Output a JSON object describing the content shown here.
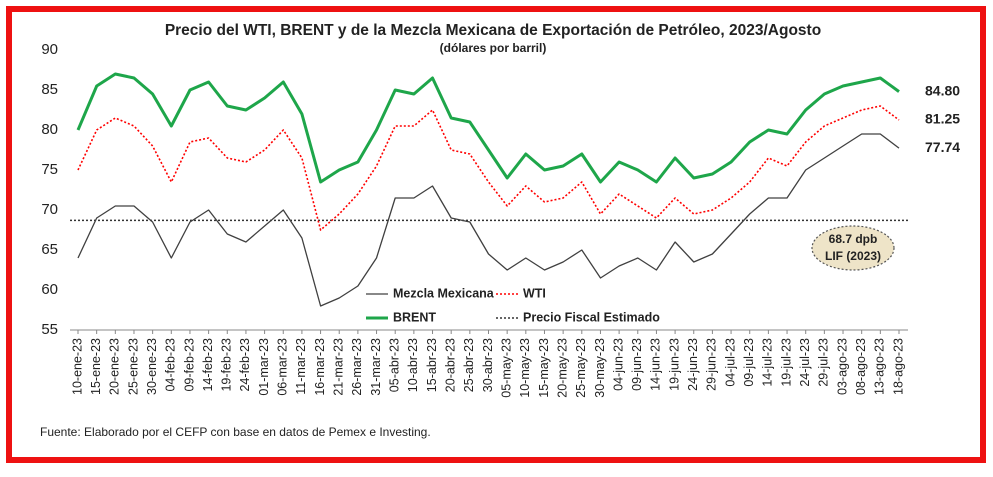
{
  "chart_data": {
    "type": "line",
    "title": "Precio del WTI, BRENT y de la Mezcla Mexicana de Exportación de Petróleo, 2023/Agosto",
    "subtitle": "(dólares por barril)",
    "categories": [
      "10-ene-23",
      "15-ene-23",
      "20-ene-23",
      "25-ene-23",
      "30-ene-23",
      "04-feb-23",
      "09-feb-23",
      "14-feb-23",
      "19-feb-23",
      "24-feb-23",
      "01-mar-23",
      "06-mar-23",
      "11-mar-23",
      "16-mar-23",
      "21-mar-23",
      "26-mar-23",
      "31-mar-23",
      "05-abr-23",
      "10-abr-23",
      "15-abr-23",
      "20-abr-23",
      "25-abr-23",
      "30-abr-23",
      "05-may-23",
      "10-may-23",
      "15-may-23",
      "20-may-23",
      "25-may-23",
      "30-may-23",
      "04-jun-23",
      "09-jun-23",
      "14-jun-23",
      "19-jun-23",
      "24-jun-23",
      "29-jun-23",
      "04-jul-23",
      "09-jul-23",
      "14-jul-23",
      "19-jul-23",
      "24-jul-23",
      "29-jul-23",
      "03-ago-23",
      "08-ago-23",
      "13-ago-23",
      "18-ago-23"
    ],
    "series": [
      {
        "name": "Mezcla Mexicana",
        "color": "#404040",
        "dash": false,
        "width": 1.3,
        "values": [
          64,
          69,
          70.5,
          70.5,
          68.5,
          64,
          68.5,
          70,
          67,
          66,
          68,
          70,
          66.5,
          58,
          59,
          60.5,
          64,
          71.5,
          71.5,
          73,
          69,
          68.5,
          64.5,
          62.5,
          64,
          62.5,
          63.5,
          65,
          61.5,
          63,
          64,
          62.5,
          66,
          63.5,
          64.5,
          67,
          69.5,
          71.5,
          71.5,
          75,
          76.5,
          78,
          79.5,
          79.5,
          77.74
        ],
        "value_labels": [
          null,
          null,
          null,
          null,
          null,
          null,
          null,
          null,
          null,
          null,
          null,
          null,
          null,
          null,
          null,
          null,
          null,
          null,
          null,
          null,
          null,
          null,
          null,
          null,
          null,
          null,
          null,
          null,
          null,
          null,
          null,
          null,
          null,
          null,
          null,
          null,
          null,
          null,
          null,
          null,
          null,
          null,
          null,
          null,
          "77.74"
        ]
      },
      {
        "name": "WTI",
        "color": "#ff0000",
        "dash": true,
        "width": 1.6,
        "values": [
          75,
          80,
          81.5,
          80.5,
          78,
          73.5,
          78.5,
          79,
          76.5,
          76,
          77.5,
          80,
          76.5,
          67.5,
          69.5,
          72,
          75.5,
          80.5,
          80.5,
          82.5,
          77.5,
          77,
          73.5,
          70.5,
          73,
          71,
          71.5,
          73.5,
          69.5,
          72,
          70.5,
          69,
          71.5,
          69.5,
          70,
          71.5,
          73.5,
          76.5,
          75.5,
          78.5,
          80.5,
          81.5,
          82.5,
          83,
          81.25
        ],
        "value_labels": [
          null,
          null,
          null,
          null,
          null,
          null,
          null,
          null,
          null,
          null,
          null,
          null,
          null,
          null,
          null,
          null,
          null,
          null,
          null,
          null,
          null,
          null,
          null,
          null,
          null,
          null,
          null,
          null,
          null,
          null,
          null,
          null,
          null,
          null,
          null,
          null,
          null,
          null,
          null,
          null,
          null,
          null,
          null,
          null,
          "81.25"
        ]
      },
      {
        "name": "BRENT",
        "color": "#1ea64a",
        "dash": false,
        "width": 3,
        "values": [
          80,
          85.5,
          87,
          86.5,
          84.5,
          80.5,
          85,
          86,
          83,
          82.5,
          84,
          86,
          82,
          73.5,
          75,
          76,
          80,
          85,
          84.5,
          86.5,
          81.5,
          81,
          77.5,
          74,
          77,
          75,
          75.5,
          77,
          73.5,
          76,
          75,
          73.5,
          76.5,
          74,
          74.5,
          76,
          78.5,
          80,
          79.5,
          82.5,
          84.5,
          85.5,
          86,
          86.5,
          84.8
        ],
        "value_labels": [
          null,
          null,
          null,
          null,
          null,
          null,
          null,
          null,
          null,
          null,
          null,
          null,
          null,
          null,
          null,
          null,
          null,
          null,
          null,
          null,
          null,
          null,
          null,
          null,
          null,
          null,
          null,
          null,
          null,
          null,
          null,
          null,
          null,
          null,
          null,
          null,
          null,
          null,
          null,
          null,
          null,
          null,
          null,
          null,
          "84.80"
        ]
      }
    ],
    "reference_line": {
      "name": "Precio Fiscal Estimado",
      "value": 68.7,
      "color": "#333333"
    },
    "annotation": [
      "68.7 dpb",
      "LIF (2023)"
    ],
    "ylim": [
      55,
      90
    ],
    "yticks": [
      55,
      60,
      65,
      70,
      75,
      80,
      85,
      90
    ],
    "grid": false,
    "source": "Fuente: Elaborado por el CEFP con base en datos de Pemex e Investing."
  }
}
